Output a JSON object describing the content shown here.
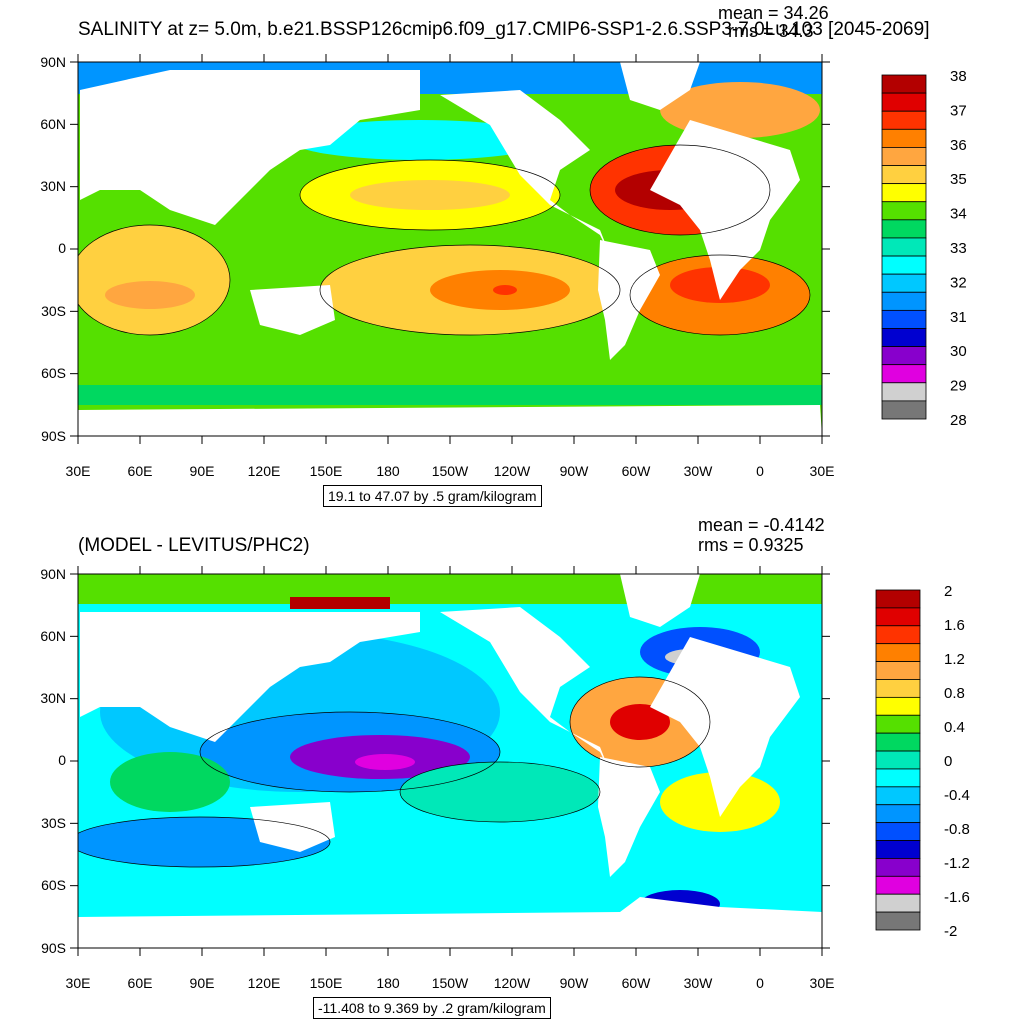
{
  "top_panel": {
    "title": "SALINITY at z=   5.0m, b.e21.BSSP126cmip6.f09_g17.CMIP6-SSP1-2.6.SSP3-7.0Lu.103 [2045-2069]",
    "mean": "mean = 34.26",
    "rms": "rms = 34.3",
    "info": "19.1 to 47.07 by .5 gram/kilogram",
    "colorbar_labels": [
      "38",
      "37",
      "36",
      "35",
      "34",
      "33",
      "32",
      "31",
      "30",
      "29",
      "28"
    ],
    "colorbar_colors": [
      "#b30000",
      "#e00000",
      "#ff3300",
      "#ff8000",
      "#ffa640",
      "#ffd040",
      "#ffff00",
      "#55e000",
      "#00d860",
      "#00e8b8",
      "#00ffff",
      "#00c8ff",
      "#0095ff",
      "#0050ff",
      "#0000d0",
      "#8800cc",
      "#e000e0",
      "#d0d0d0",
      "#777777"
    ]
  },
  "bottom_panel": {
    "title": "(MODEL - LEVITUS/PHC2)",
    "mean": "mean = -0.4142",
    "rms": "rms = 0.9325",
    "info": "-11.408 to 9.369 by .2 gram/kilogram",
    "colorbar_labels": [
      "2",
      "1.6",
      "1.2",
      "0.8",
      "0.4",
      "0",
      "-0.4",
      "-0.8",
      "-1.2",
      "-1.6",
      "-2"
    ],
    "colorbar_colors": [
      "#b30000",
      "#e00000",
      "#ff3300",
      "#ff8000",
      "#ffa640",
      "#ffd040",
      "#ffff00",
      "#55e000",
      "#00d860",
      "#00e8b8",
      "#00ffff",
      "#00c8ff",
      "#0095ff",
      "#0050ff",
      "#0000d0",
      "#8800cc",
      "#e000e0",
      "#d0d0d0",
      "#777777"
    ]
  },
  "lat_labels": [
    "90N",
    "60N",
    "30N",
    "0",
    "30S",
    "60S",
    "90S"
  ],
  "lon_labels": [
    "30E",
    "60E",
    "90E",
    "120E",
    "150E",
    "180",
    "150W",
    "120W",
    "90W",
    "60W",
    "30W",
    "0",
    "30E"
  ]
}
